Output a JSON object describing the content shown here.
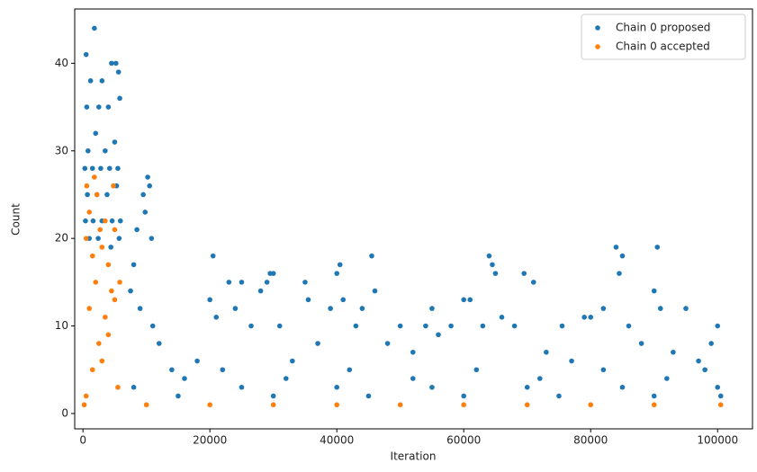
{
  "chart_data": {
    "type": "scatter",
    "xlabel": "Iteration",
    "ylabel": "Count",
    "xlim": [
      -1300,
      105500
    ],
    "ylim": [
      -1.75,
      46.2
    ],
    "xticks": [
      0,
      20000,
      40000,
      60000,
      80000,
      100000
    ],
    "yticks": [
      0,
      10,
      20,
      30,
      40
    ],
    "grid": false,
    "legend": "upper right",
    "series": [
      {
        "name": "Chain 0 proposed",
        "color": "#1f77b4",
        "x": [
          500,
          1800,
          1200,
          3000,
          4500,
          5200,
          5600,
          600,
          2500,
          4000,
          5800,
          800,
          2000,
          3500,
          5000,
          300,
          1500,
          2800,
          4200,
          5500,
          700,
          2200,
          3800,
          5300,
          400,
          1600,
          3000,
          4600,
          5900,
          1000,
          2400,
          4400,
          5700,
          7500,
          8500,
          9500,
          10200,
          10500,
          9800,
          10800,
          8000,
          9000,
          11000,
          12000,
          14000,
          16000,
          18000,
          20500,
          20000,
          21000,
          23000,
          24000,
          25000,
          26500,
          28000,
          29000,
          29500,
          30000,
          31000,
          33000,
          35000,
          35500,
          37000,
          39000,
          40000,
          40500,
          41000,
          43000,
          44000,
          45500,
          46000,
          48000,
          50000,
          52000,
          54000,
          55000,
          56000,
          58000,
          60000,
          61000,
          63000,
          64000,
          64500,
          65000,
          66000,
          68000,
          69500,
          71000,
          73000,
          75500,
          77000,
          79000,
          80000,
          82000,
          84000,
          85000,
          84500,
          86000,
          88000,
          90000,
          90500,
          91000,
          93000,
          95000,
          97000,
          99000,
          100000,
          15000,
          30000,
          45000,
          60000,
          75000,
          90000,
          100500,
          8000,
          25000,
          40000,
          55000,
          70000,
          85000,
          100000,
          22000,
          42000,
          62000,
          82000,
          98000,
          32000,
          52000,
          72000,
          92000
        ],
        "values": [
          41,
          44,
          38,
          38,
          40,
          40,
          39,
          35,
          35,
          35,
          36,
          30,
          32,
          30,
          31,
          28,
          28,
          28,
          28,
          28,
          25,
          25,
          25,
          26,
          22,
          22,
          22,
          22,
          22,
          20,
          20,
          19,
          20,
          14,
          21,
          25,
          27,
          26,
          23,
          20,
          17,
          12,
          10,
          8,
          5,
          4,
          6,
          18,
          13,
          11,
          15,
          12,
          15,
          10,
          14,
          15,
          16,
          16,
          10,
          6,
          15,
          13,
          8,
          12,
          16,
          17,
          13,
          10,
          12,
          18,
          14,
          8,
          10,
          7,
          10,
          12,
          9,
          10,
          13,
          13,
          10,
          18,
          17,
          16,
          11,
          10,
          16,
          15,
          7,
          10,
          6,
          11,
          11,
          12,
          19,
          18,
          16,
          10,
          8,
          14,
          19,
          12,
          7,
          12,
          6,
          8,
          10,
          2,
          2,
          2,
          2,
          2,
          2,
          2,
          3,
          3,
          3,
          3,
          3,
          3,
          3,
          5,
          5,
          5,
          5,
          5,
          4,
          4,
          4,
          4
        ]
      },
      {
        "name": "Chain 0 accepted",
        "color": "#ff7f0e",
        "x": [
          200,
          500,
          1500,
          2500,
          3500,
          4500,
          5500,
          1000,
          2000,
          3000,
          4000,
          5000,
          5800,
          1800,
          2200,
          1000,
          4800,
          600,
          3500,
          5000,
          2700,
          1500,
          4000,
          3000,
          500,
          10000,
          20000,
          30000,
          40000,
          50000,
          60000,
          70000,
          80000,
          90000,
          100500
        ],
        "values": [
          1,
          2,
          5,
          8,
          11,
          14,
          3,
          12,
          15,
          6,
          9,
          13,
          15,
          27,
          25,
          23,
          26,
          26,
          22,
          21,
          21,
          18,
          17,
          19,
          20,
          1,
          1,
          1,
          1,
          1,
          1,
          1,
          1,
          1,
          1
        ]
      }
    ]
  }
}
